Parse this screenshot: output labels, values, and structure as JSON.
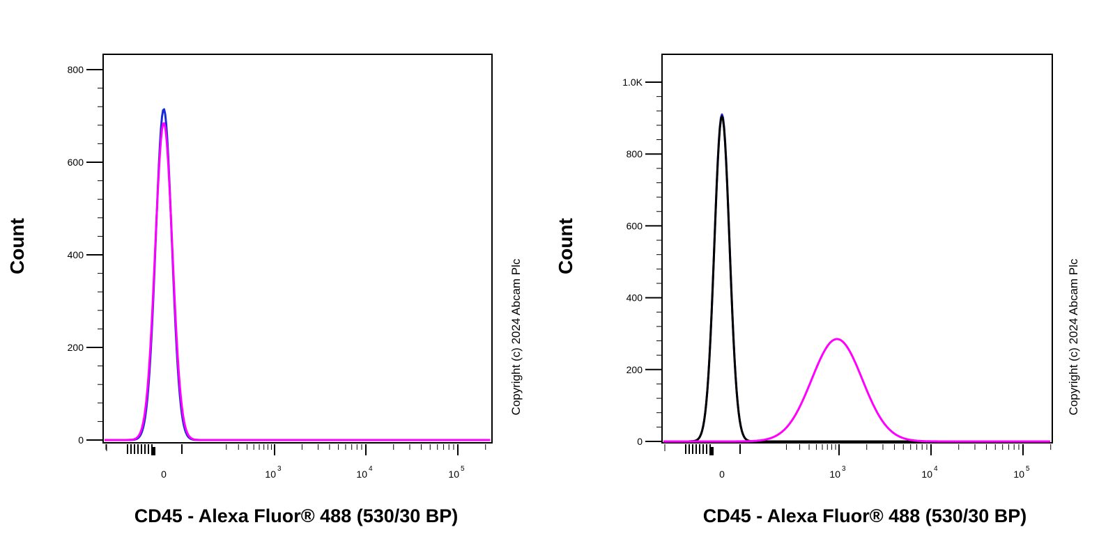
{
  "copyright": "Copyright (c) 2024 Abcam Plc",
  "chart_data": [
    {
      "type": "line",
      "xlabel": "CD45 - Alexa Fluor® 488 (530/30 BP)",
      "ylabel": "Count",
      "x_scale": "logicle",
      "x_ticks": [
        "0",
        "10^3",
        "10^4",
        "10^5"
      ],
      "y_ticks": [
        "0",
        "200",
        "400",
        "600",
        "800"
      ],
      "ylim": [
        0,
        800
      ],
      "series": [
        {
          "color": "#1a2bd6",
          "peaks": [
            {
              "center": 0,
              "height": 715,
              "width": 0.16
            }
          ]
        },
        {
          "color": "#ff00ff",
          "peaks": [
            {
              "center": 0,
              "height": 685,
              "width": 0.17
            }
          ]
        }
      ]
    },
    {
      "type": "line",
      "xlabel": "CD45 - Alexa Fluor® 488 (530/30 BP)",
      "ylabel": "Count",
      "x_scale": "logicle",
      "x_ticks": [
        "0",
        "10^3",
        "10^4",
        "10^5"
      ],
      "y_ticks": [
        "0",
        "200",
        "400",
        "600",
        "800",
        "1.0K"
      ],
      "ylim": [
        0,
        1000
      ],
      "series": [
        {
          "color": "#1a2bd6",
          "peaks": [
            {
              "center": 0,
              "height": 910,
              "width": 0.15
            }
          ]
        },
        {
          "color": "#000000",
          "peaks": [
            {
              "center": 0,
              "height": 905,
              "width": 0.15
            }
          ]
        },
        {
          "color": "#ff00ff",
          "peaks": [
            {
              "center": 950,
              "height": 285,
              "width": 0.5
            }
          ]
        }
      ]
    }
  ]
}
